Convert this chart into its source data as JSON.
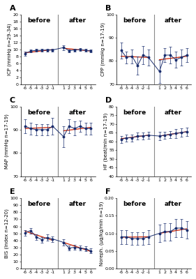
{
  "x": [
    -6,
    -5,
    -4,
    -3,
    -2,
    -1,
    1,
    2,
    3,
    4,
    5,
    6
  ],
  "x_positions": [
    0,
    1,
    2,
    3,
    4,
    5,
    7,
    8,
    9,
    10,
    11,
    12
  ],
  "panels": [
    {
      "label": "A",
      "ylabel": "ICP (mmHg n=29-34)",
      "ylim": [
        0,
        20
      ],
      "yticks": [
        0,
        2,
        4,
        6,
        8,
        10,
        12,
        14,
        16,
        18,
        20
      ],
      "y": [
        8.8,
        9.5,
        9.7,
        9.7,
        9.8,
        9.8,
        10.5,
        9.6,
        9.8,
        9.9,
        9.7,
        9.5
      ],
      "yerr": [
        0.6,
        0.4,
        0.4,
        0.4,
        0.4,
        0.4,
        0.7,
        0.4,
        0.4,
        0.4,
        0.4,
        0.4
      ],
      "trend_before": [
        9.0,
        9.9
      ],
      "trend_after": [
        10.3,
        9.5
      ]
    },
    {
      "label": "B",
      "ylabel": "CPP (mmHg n=17-19)",
      "ylim": [
        70,
        100
      ],
      "yticks": [
        70,
        80,
        90,
        100
      ],
      "y": [
        84.5,
        81.5,
        82.0,
        78.0,
        82.5,
        81.5,
        75.5,
        82.5,
        82.5,
        80.5,
        81.5,
        82.5
      ],
      "yerr": [
        3.5,
        2.5,
        3.0,
        4.0,
        4.0,
        3.5,
        5.0,
        3.0,
        3.5,
        3.5,
        3.5,
        3.0
      ],
      "trend_before": [
        82.0,
        81.5
      ],
      "trend_after": [
        80.5,
        82.0
      ]
    },
    {
      "label": "C",
      "ylabel": "MAP (mmHg n=17-19)",
      "ylim": [
        70,
        100
      ],
      "yticks": [
        70,
        80,
        90,
        100
      ],
      "y": [
        91.5,
        90.5,
        90.0,
        90.0,
        90.0,
        91.5,
        87.0,
        91.5,
        90.5,
        91.5,
        90.5,
        90.5
      ],
      "yerr": [
        3.0,
        2.5,
        2.5,
        2.5,
        2.5,
        3.5,
        4.5,
        3.0,
        3.0,
        2.5,
        2.5,
        2.5
      ],
      "trend_before": [
        90.5,
        91.0
      ],
      "trend_after": [
        89.5,
        91.0
      ]
    },
    {
      "label": "D",
      "ylabel": "HF (beat/min n=17-19)",
      "ylim": [
        40,
        80
      ],
      "yticks": [
        40,
        45,
        50,
        55,
        60,
        65,
        70,
        75,
        80
      ],
      "y": [
        61.0,
        62.0,
        62.0,
        63.0,
        63.0,
        63.5,
        63.0,
        63.5,
        64.0,
        64.5,
        65.0,
        65.5
      ],
      "yerr": [
        2.0,
        2.0,
        2.0,
        2.0,
        2.0,
        2.0,
        2.5,
        2.0,
        2.0,
        2.5,
        2.5,
        2.5
      ],
      "trend_before": [
        61.5,
        63.5
      ],
      "trend_after": [
        63.0,
        65.5
      ]
    },
    {
      "label": "E",
      "ylabel": "BIS (Index n=12-20)",
      "ylim": [
        0,
        100
      ],
      "yticks": [
        0,
        10,
        20,
        30,
        40,
        50,
        60,
        70,
        80,
        90,
        100
      ],
      "y": [
        51.0,
        54.0,
        45.0,
        41.0,
        44.0,
        42.0,
        37.0,
        29.0,
        30.0,
        29.0,
        28.0,
        25.0
      ],
      "yerr": [
        4.0,
        4.0,
        4.0,
        4.0,
        4.5,
        4.0,
        4.5,
        3.5,
        3.5,
        3.5,
        3.5,
        3.5
      ],
      "trend_before": [
        53.0,
        40.0
      ],
      "trend_after": [
        37.0,
        24.0
      ]
    },
    {
      "label": "F",
      "ylabel": "Noreph. (μg/kg/min n=19)",
      "ylim": [
        0.0,
        0.2
      ],
      "yticks": [
        0.0,
        0.05,
        0.1,
        0.15,
        0.2
      ],
      "y": [
        0.09,
        0.09,
        0.085,
        0.085,
        0.085,
        0.09,
        0.1,
        0.105,
        0.105,
        0.115,
        0.115,
        0.11
      ],
      "yerr": [
        0.02,
        0.02,
        0.018,
        0.018,
        0.018,
        0.02,
        0.025,
        0.025,
        0.025,
        0.025,
        0.025,
        0.025
      ],
      "trend_before": [
        0.089,
        0.09
      ],
      "trend_after": [
        0.1,
        0.113
      ]
    }
  ],
  "line_color": "#1a2e6e",
  "trend_color": "#cc2200",
  "vline_color": "#888888",
  "before_label": "before",
  "after_label": "after",
  "bg_color": "#ffffff",
  "ylabel_fontsize": 5.0,
  "tick_fontsize": 4.5,
  "annotation_fontsize": 6.5,
  "panel_label_fontsize": 8
}
